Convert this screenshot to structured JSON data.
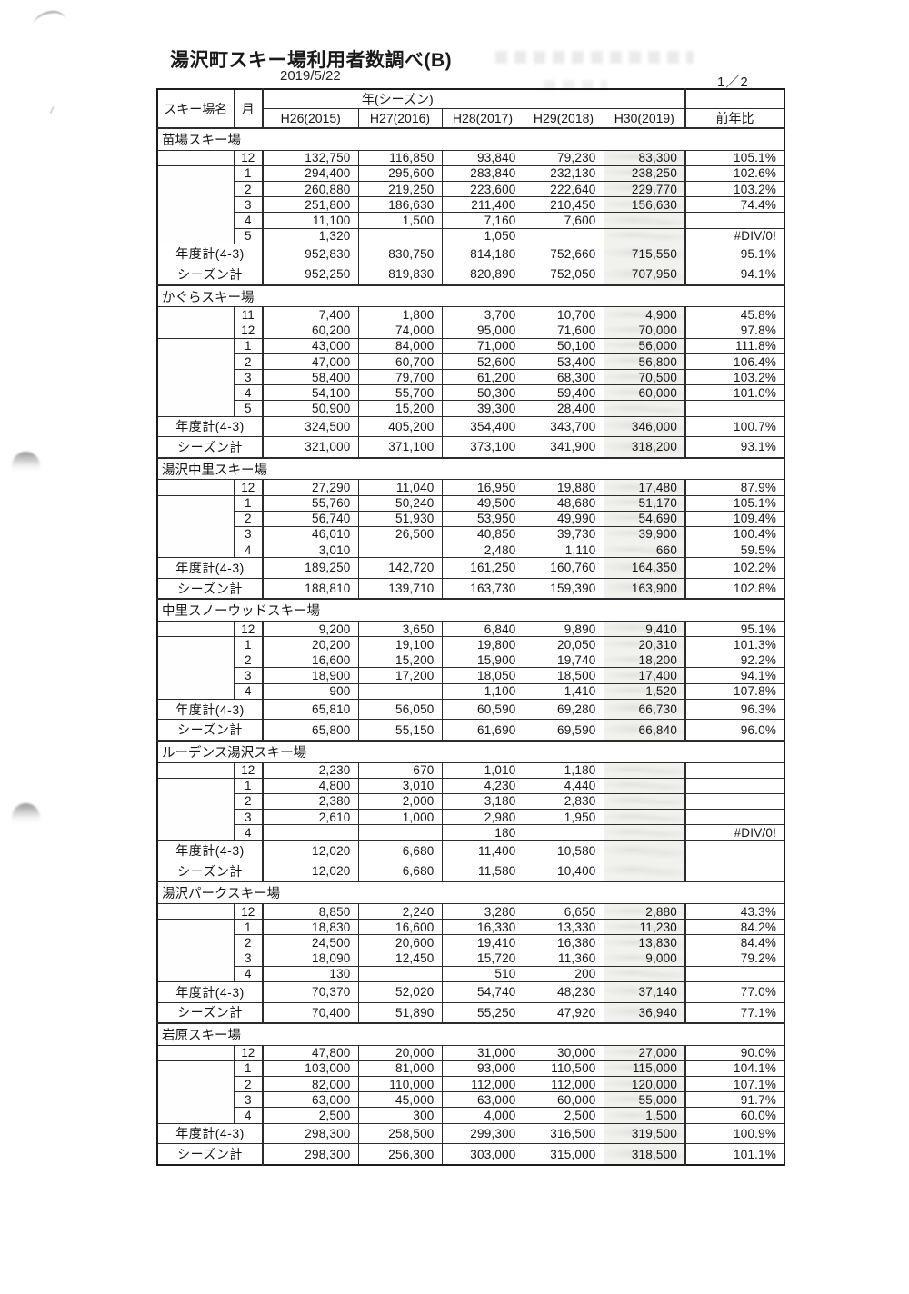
{
  "page": {
    "title": "湯沢町スキー場利用者数調べ(B)",
    "date": "2019/5/22",
    "page_number": "1／2"
  },
  "table": {
    "header": {
      "resort": "スキー場名",
      "month": "月",
      "year_group": "年(シーズン)",
      "years": [
        "H26(2015)",
        "H27(2016)",
        "H28(2017)",
        "H29(2018)",
        "H30(2019)"
      ],
      "yoy": "前年比"
    },
    "annual_total_label": "年度計(4-3)",
    "season_total_label": "シーズン計",
    "sections": [
      {
        "name": "苗場スキー場",
        "first_year_months": 1,
        "rows": [
          {
            "month": "12",
            "values": [
              "132,750",
              "116,850",
              "93,840",
              "79,230",
              "83,300"
            ],
            "yoy": "105.1%"
          },
          {
            "month": "1",
            "values": [
              "294,400",
              "295,600",
              "283,840",
              "232,130",
              "238,250"
            ],
            "yoy": "102.6%"
          },
          {
            "month": "2",
            "values": [
              "260,880",
              "219,250",
              "223,600",
              "222,640",
              "229,770"
            ],
            "yoy": "103.2%"
          },
          {
            "month": "3",
            "values": [
              "251,800",
              "186,630",
              "211,400",
              "210,450",
              "156,630"
            ],
            "yoy": "74.4%"
          },
          {
            "month": "4",
            "values": [
              "11,100",
              "1,500",
              "7,160",
              "7,600",
              ""
            ],
            "yoy": ""
          },
          {
            "month": "5",
            "values": [
              "1,320",
              "",
              "1,050",
              "",
              ""
            ],
            "yoy": "#DIV/0!"
          }
        ],
        "annual": {
          "values": [
            "952,830",
            "830,750",
            "814,180",
            "752,660",
            "715,550"
          ],
          "yoy": "95.1%"
        },
        "season": {
          "values": [
            "952,250",
            "819,830",
            "820,890",
            "752,050",
            "707,950"
          ],
          "yoy": "94.1%"
        }
      },
      {
        "name": "かぐらスキー場",
        "first_year_months": 2,
        "rows": [
          {
            "month": "11",
            "values": [
              "7,400",
              "1,800",
              "3,700",
              "10,700",
              "4,900"
            ],
            "yoy": "45.8%"
          },
          {
            "month": "12",
            "values": [
              "60,200",
              "74,000",
              "95,000",
              "71,600",
              "70,000"
            ],
            "yoy": "97.8%"
          },
          {
            "month": "1",
            "values": [
              "43,000",
              "84,000",
              "71,000",
              "50,100",
              "56,000"
            ],
            "yoy": "111.8%"
          },
          {
            "month": "2",
            "values": [
              "47,000",
              "60,700",
              "52,600",
              "53,400",
              "56,800"
            ],
            "yoy": "106.4%"
          },
          {
            "month": "3",
            "values": [
              "58,400",
              "79,700",
              "61,200",
              "68,300",
              "70,500"
            ],
            "yoy": "103.2%"
          },
          {
            "month": "4",
            "values": [
              "54,100",
              "55,700",
              "50,300",
              "59,400",
              "60,000"
            ],
            "yoy": "101.0%"
          },
          {
            "month": "5",
            "values": [
              "50,900",
              "15,200",
              "39,300",
              "28,400",
              ""
            ],
            "yoy": ""
          }
        ],
        "annual": {
          "values": [
            "324,500",
            "405,200",
            "354,400",
            "343,700",
            "346,000"
          ],
          "yoy": "100.7%"
        },
        "season": {
          "values": [
            "321,000",
            "371,100",
            "373,100",
            "341,900",
            "318,200"
          ],
          "yoy": "93.1%"
        }
      },
      {
        "name": "湯沢中里スキー場",
        "first_year_months": 1,
        "rows": [
          {
            "month": "12",
            "values": [
              "27,290",
              "11,040",
              "16,950",
              "19,880",
              "17,480"
            ],
            "yoy": "87.9%"
          },
          {
            "month": "1",
            "values": [
              "55,760",
              "50,240",
              "49,500",
              "48,680",
              "51,170"
            ],
            "yoy": "105.1%"
          },
          {
            "month": "2",
            "values": [
              "56,740",
              "51,930",
              "53,950",
              "49,990",
              "54,690"
            ],
            "yoy": "109.4%"
          },
          {
            "month": "3",
            "values": [
              "46,010",
              "26,500",
              "40,850",
              "39,730",
              "39,900"
            ],
            "yoy": "100.4%"
          },
          {
            "month": "4",
            "values": [
              "3,010",
              "",
              "2,480",
              "1,110",
              "660"
            ],
            "yoy": "59.5%"
          }
        ],
        "annual": {
          "values": [
            "189,250",
            "142,720",
            "161,250",
            "160,760",
            "164,350"
          ],
          "yoy": "102.2%"
        },
        "season": {
          "values": [
            "188,810",
            "139,710",
            "163,730",
            "159,390",
            "163,900"
          ],
          "yoy": "102.8%"
        }
      },
      {
        "name": "中里スノーウッドスキー場",
        "first_year_months": 1,
        "rows": [
          {
            "month": "12",
            "values": [
              "9,200",
              "3,650",
              "6,840",
              "9,890",
              "9,410"
            ],
            "yoy": "95.1%"
          },
          {
            "month": "1",
            "values": [
              "20,200",
              "19,100",
              "19,800",
              "20,050",
              "20,310"
            ],
            "yoy": "101.3%"
          },
          {
            "month": "2",
            "values": [
              "16,600",
              "15,200",
              "15,900",
              "19,740",
              "18,200"
            ],
            "yoy": "92.2%"
          },
          {
            "month": "3",
            "values": [
              "18,900",
              "17,200",
              "18,050",
              "18,500",
              "17,400"
            ],
            "yoy": "94.1%"
          },
          {
            "month": "4",
            "values": [
              "900",
              "",
              "1,100",
              "1,410",
              "1,520"
            ],
            "yoy": "107.8%"
          }
        ],
        "annual": {
          "values": [
            "65,810",
            "56,050",
            "60,590",
            "69,280",
            "66,730"
          ],
          "yoy": "96.3%"
        },
        "season": {
          "values": [
            "65,800",
            "55,150",
            "61,690",
            "69,590",
            "66,840"
          ],
          "yoy": "96.0%"
        }
      },
      {
        "name": "ルーデンス湯沢スキー場",
        "first_year_months": 1,
        "rows": [
          {
            "month": "12",
            "values": [
              "2,230",
              "670",
              "1,010",
              "1,180",
              ""
            ],
            "yoy": ""
          },
          {
            "month": "1",
            "values": [
              "4,800",
              "3,010",
              "4,230",
              "4,440",
              ""
            ],
            "yoy": ""
          },
          {
            "month": "2",
            "values": [
              "2,380",
              "2,000",
              "3,180",
              "2,830",
              ""
            ],
            "yoy": ""
          },
          {
            "month": "3",
            "values": [
              "2,610",
              "1,000",
              "2,980",
              "1,950",
              ""
            ],
            "yoy": ""
          },
          {
            "month": "4",
            "values": [
              "",
              "",
              "180",
              "",
              ""
            ],
            "yoy": "#DIV/0!"
          }
        ],
        "annual": {
          "values": [
            "12,020",
            "6,680",
            "11,400",
            "10,580",
            ""
          ],
          "yoy": ""
        },
        "season": {
          "values": [
            "12,020",
            "6,680",
            "11,580",
            "10,400",
            ""
          ],
          "yoy": ""
        }
      },
      {
        "name": "湯沢パークスキー場",
        "first_year_months": 1,
        "rows": [
          {
            "month": "12",
            "values": [
              "8,850",
              "2,240",
              "3,280",
              "6,650",
              "2,880"
            ],
            "yoy": "43.3%"
          },
          {
            "month": "1",
            "values": [
              "18,830",
              "16,600",
              "16,330",
              "13,330",
              "11,230"
            ],
            "yoy": "84.2%"
          },
          {
            "month": "2",
            "values": [
              "24,500",
              "20,600",
              "19,410",
              "16,380",
              "13,830"
            ],
            "yoy": "84.4%"
          },
          {
            "month": "3",
            "values": [
              "18,090",
              "12,450",
              "15,720",
              "11,360",
              "9,000"
            ],
            "yoy": "79.2%"
          },
          {
            "month": "4",
            "values": [
              "130",
              "",
              "510",
              "200",
              ""
            ],
            "yoy": ""
          }
        ],
        "annual": {
          "values": [
            "70,370",
            "52,020",
            "54,740",
            "48,230",
            "37,140"
          ],
          "yoy": "77.0%"
        },
        "season": {
          "values": [
            "70,400",
            "51,890",
            "55,250",
            "47,920",
            "36,940"
          ],
          "yoy": "77.1%"
        }
      },
      {
        "name": "岩原スキー場",
        "first_year_months": 1,
        "rows": [
          {
            "month": "12",
            "values": [
              "47,800",
              "20,000",
              "31,000",
              "30,000",
              "27,000"
            ],
            "yoy": "90.0%"
          },
          {
            "month": "1",
            "values": [
              "103,000",
              "81,000",
              "93,000",
              "110,500",
              "115,000"
            ],
            "yoy": "104.1%"
          },
          {
            "month": "2",
            "values": [
              "82,000",
              "110,000",
              "112,000",
              "112,000",
              "120,000"
            ],
            "yoy": "107.1%"
          },
          {
            "month": "3",
            "values": [
              "63,000",
              "45,000",
              "63,000",
              "60,000",
              "55,000"
            ],
            "yoy": "91.7%"
          },
          {
            "month": "4",
            "values": [
              "2,500",
              "300",
              "4,000",
              "2,500",
              "1,500"
            ],
            "yoy": "60.0%"
          }
        ],
        "annual": {
          "values": [
            "298,300",
            "258,500",
            "299,300",
            "316,500",
            "319,500"
          ],
          "yoy": "100.9%"
        },
        "season": {
          "values": [
            "298,300",
            "256,300",
            "303,000",
            "315,000",
            "318,500"
          ],
          "yoy": "101.1%"
        }
      }
    ]
  }
}
